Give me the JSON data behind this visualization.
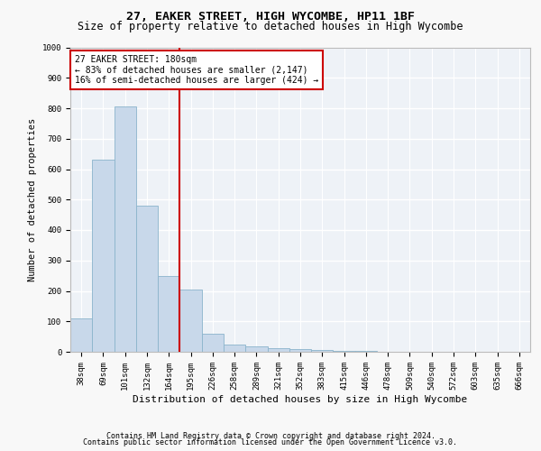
{
  "title1": "27, EAKER STREET, HIGH WYCOMBE, HP11 1BF",
  "title2": "Size of property relative to detached houses in High Wycombe",
  "xlabel": "Distribution of detached houses by size in High Wycombe",
  "ylabel": "Number of detached properties",
  "categories": [
    "38sqm",
    "69sqm",
    "101sqm",
    "132sqm",
    "164sqm",
    "195sqm",
    "226sqm",
    "258sqm",
    "289sqm",
    "321sqm",
    "352sqm",
    "383sqm",
    "415sqm",
    "446sqm",
    "478sqm",
    "509sqm",
    "540sqm",
    "572sqm",
    "603sqm",
    "635sqm",
    "666sqm"
  ],
  "values": [
    110,
    630,
    805,
    480,
    250,
    205,
    60,
    25,
    18,
    12,
    8,
    5,
    3,
    2,
    1,
    1,
    0,
    0,
    0,
    0,
    0
  ],
  "bar_color": "#c8d8ea",
  "bar_edge_color": "#8ab4cc",
  "vline_x_index": 4.5,
  "vline_color": "#cc0000",
  "annotation_text": "27 EAKER STREET: 180sqm\n← 83% of detached houses are smaller (2,147)\n16% of semi-detached houses are larger (424) →",
  "annotation_box_color": "#ffffff",
  "annotation_box_edge_color": "#cc0000",
  "ylim": [
    0,
    1000
  ],
  "yticks": [
    0,
    100,
    200,
    300,
    400,
    500,
    600,
    700,
    800,
    900,
    1000
  ],
  "footer1": "Contains HM Land Registry data © Crown copyright and database right 2024.",
  "footer2": "Contains public sector information licensed under the Open Government Licence v3.0.",
  "bg_color": "#eef2f7",
  "grid_color": "#ffffff",
  "title1_fontsize": 9.5,
  "title2_fontsize": 8.5,
  "xlabel_fontsize": 8,
  "ylabel_fontsize": 7.5,
  "tick_fontsize": 6.5,
  "annotation_fontsize": 7,
  "footer_fontsize": 6
}
